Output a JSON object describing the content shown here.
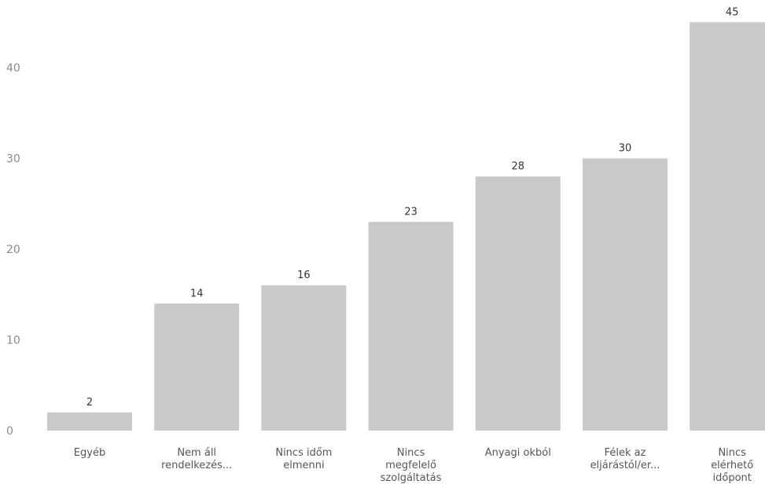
{
  "chart_data": {
    "type": "bar",
    "categories": [
      [
        "Egyéb"
      ],
      [
        "Nem áll",
        "rendelkezés..."
      ],
      [
        "Nincs időm",
        "elmenni"
      ],
      [
        "Nincs",
        "megfelelő",
        "szolgáltatás"
      ],
      [
        "Anyagi okból"
      ],
      [
        "Félek az",
        "eljárástól/er..."
      ],
      [
        "Nincs",
        "elérhető",
        "időpont"
      ]
    ],
    "values": [
      2,
      14,
      16,
      23,
      28,
      30,
      45
    ],
    "value_labels": [
      "2",
      "14",
      "16",
      "23",
      "28",
      "30",
      "45"
    ],
    "yticks": [
      0,
      10,
      20,
      30,
      40
    ],
    "ytick_labels": [
      "0",
      "10",
      "20",
      "30",
      "40"
    ],
    "ylim": [
      0,
      47
    ],
    "bar_color": "#c9c9c9",
    "grid": false
  }
}
